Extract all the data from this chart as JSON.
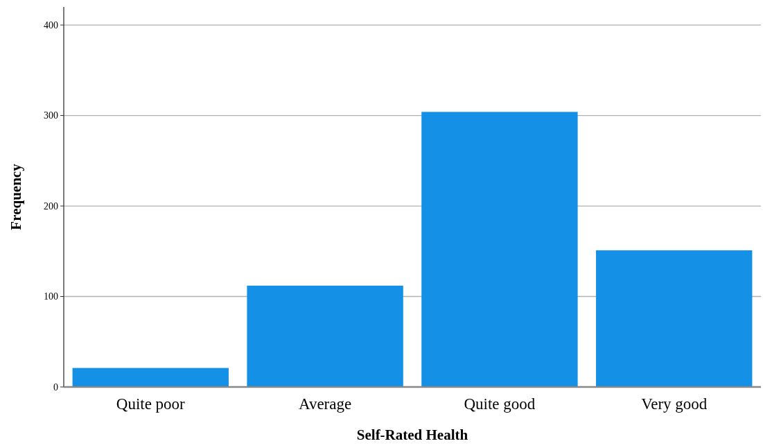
{
  "chart_data": {
    "type": "bar",
    "xlabel": "Self-Rated Health",
    "ylabel": "Frequency",
    "categories": [
      "Quite poor",
      "Average",
      "Quite good",
      "Very good"
    ],
    "values": [
      21,
      112,
      304,
      151
    ],
    "color": "#1490e6",
    "ylim": [
      0,
      420
    ],
    "yticks": [
      0,
      100,
      200,
      300,
      400
    ],
    "grid": "y"
  }
}
